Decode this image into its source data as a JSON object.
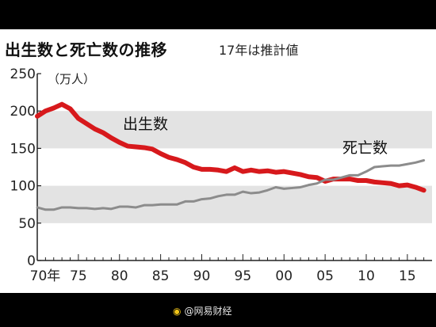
{
  "chart_data": {
    "type": "line",
    "title": "出生数と死亡数の推移",
    "subtitle": "17年は推計値",
    "ylabel": "（万人）",
    "ylim": [
      0,
      250
    ],
    "yticks": [
      0,
      50,
      100,
      150,
      200,
      250
    ],
    "xlim": [
      1970,
      2018
    ],
    "xticks": [
      {
        "value": 1970,
        "label": "70年"
      },
      {
        "value": 1975,
        "label": "75"
      },
      {
        "value": 1980,
        "label": "80"
      },
      {
        "value": 1985,
        "label": "85"
      },
      {
        "value": 1990,
        "label": "90"
      },
      {
        "value": 1995,
        "label": "95"
      },
      {
        "value": 2000,
        "label": "00"
      },
      {
        "value": 2005,
        "label": "05"
      },
      {
        "value": 2010,
        "label": "10"
      },
      {
        "value": 2015,
        "label": "15"
      }
    ],
    "bands": [
      [
        50,
        100
      ],
      [
        150,
        200
      ]
    ],
    "x": [
      1970,
      1971,
      1972,
      1973,
      1974,
      1975,
      1976,
      1977,
      1978,
      1979,
      1980,
      1981,
      1982,
      1983,
      1984,
      1985,
      1986,
      1987,
      1988,
      1989,
      1990,
      1991,
      1992,
      1993,
      1994,
      1995,
      1996,
      1997,
      1998,
      1999,
      2000,
      2001,
      2002,
      2003,
      2004,
      2005,
      2006,
      2007,
      2008,
      2009,
      2010,
      2011,
      2012,
      2013,
      2014,
      2015,
      2016,
      2017
    ],
    "series": [
      {
        "name": "出生数",
        "color": "#d7191c",
        "values": [
          193,
          200,
          204,
          209,
          203,
          190,
          183,
          176,
          171,
          164,
          158,
          153,
          152,
          151,
          149,
          143,
          138,
          135,
          131,
          125,
          122,
          122,
          121,
          119,
          124,
          119,
          121,
          119,
          120,
          118,
          119,
          117,
          115,
          112,
          111,
          106,
          109,
          109,
          109,
          107,
          107,
          105,
          104,
          103,
          100,
          101,
          98,
          94
        ]
      },
      {
        "name": "死亡数",
        "color": "#8c8c8c",
        "values": [
          71,
          68,
          68,
          71,
          71,
          70,
          70,
          69,
          70,
          69,
          72,
          72,
          71,
          74,
          74,
          75,
          75,
          75,
          79,
          79,
          82,
          83,
          86,
          88,
          88,
          92,
          90,
          91,
          94,
          98,
          96,
          97,
          98,
          101,
          103,
          108,
          108,
          111,
          114,
          114,
          119,
          125,
          126,
          127,
          127,
          129,
          131,
          134
        ]
      }
    ]
  }
}
